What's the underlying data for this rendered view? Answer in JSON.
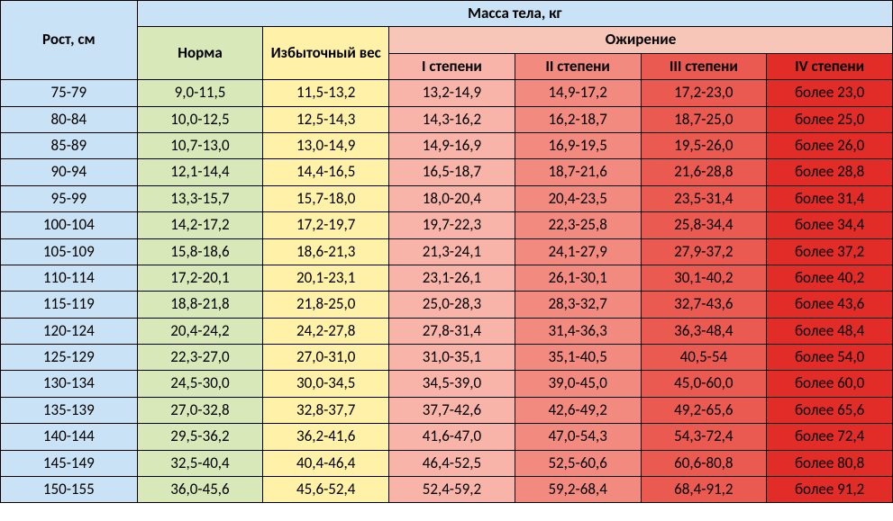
{
  "header": {
    "height_label": "Рост, см",
    "mass_label": "Масса тела, кг",
    "norma": "Норма",
    "excess": "Избыточный вес",
    "obesity": "Ожирение",
    "stage1": "I степени",
    "stage2": "II степени",
    "stage3": "III степени",
    "stage4": "IV степени"
  },
  "colors": {
    "header_blue": "#c9e2f5",
    "norma_green": "#d8e8b8",
    "excess_yellow": "#fff2a8",
    "obesity_header": "#f8c6b8",
    "stage1": "#f8b4a8",
    "stage2": "#f28a80",
    "stage3": "#ea5a50",
    "stage4": "#e22c28",
    "border": "#000000"
  },
  "table": {
    "type": "table",
    "col_widths_pct": [
      15.3,
      14.1,
      14.1,
      14.1,
      14.1,
      14.1,
      14.1
    ],
    "font_size_pt": 13,
    "rows": [
      {
        "h": "75-79",
        "n": "9,0-11,5",
        "e": "11,5-13,2",
        "s1": "13,2-14,9",
        "s2": "14,9-17,2",
        "s3": "17,2-23,0",
        "s4": "более 23,0"
      },
      {
        "h": "80-84",
        "n": "10,0-12,5",
        "e": "12,5-14,3",
        "s1": "14,3-16,2",
        "s2": "16,2-18,7",
        "s3": "18,7-25,0",
        "s4": "более 25,0"
      },
      {
        "h": "85-89",
        "n": "10,7-13,0",
        "e": "13,0-14,9",
        "s1": "14,9-16,9",
        "s2": "16,9-19,5",
        "s3": "19,5-26,0",
        "s4": "более 26,0"
      },
      {
        "h": "90-94",
        "n": "12,1-14,4",
        "e": "14,4-16,5",
        "s1": "16,5-18,7",
        "s2": "18,7-21,6",
        "s3": "21,6-28,8",
        "s4": "более 28,8"
      },
      {
        "h": "95-99",
        "n": "13,3-15,7",
        "e": "15,7-18,0",
        "s1": "18,0-20,4",
        "s2": "20,4-23,5",
        "s3": "23,5-31,4",
        "s4": "более 31,4"
      },
      {
        "h": "100-104",
        "n": "14,2-17,2",
        "e": "17,2-19,7",
        "s1": "19,7-22,3",
        "s2": "22,3-25,8",
        "s3": "25,8-34,4",
        "s4": "более 34,4"
      },
      {
        "h": "105-109",
        "n": "15,8-18,6",
        "e": "18,6-21,3",
        "s1": "21,3-24,1",
        "s2": "24,1-27,9",
        "s3": "27,9-37,2",
        "s4": "более 37,2"
      },
      {
        "h": "110-114",
        "n": "17,2-20,1",
        "e": "20,1-23,1",
        "s1": "23,1-26,1",
        "s2": "26,1-30,1",
        "s3": "30,1-40,2",
        "s4": "более 40,2"
      },
      {
        "h": "115-119",
        "n": "18,8-21,8",
        "e": "21,8-25,0",
        "s1": "25,0-28,3",
        "s2": "28,3-32,7",
        "s3": "32,7-43,6",
        "s4": "более 43,6"
      },
      {
        "h": "120-124",
        "n": "20,4-24,2",
        "e": "24,2-27,8",
        "s1": "27,8-31,4",
        "s2": "31,4-36,3",
        "s3": "36,3-48,4",
        "s4": "более 48,4"
      },
      {
        "h": "125-129",
        "n": "22,3-27,0",
        "e": "27,0-31,0",
        "s1": "31,0-35,1",
        "s2": "35,1-40,5",
        "s3": "40,5-54",
        "s4": "более 54,0"
      },
      {
        "h": "130-134",
        "n": "24,5-30,0",
        "e": "30,0-34,5",
        "s1": "34,5-39,0",
        "s2": "39,0-45,0",
        "s3": "45,0-60,0",
        "s4": "более 60,0"
      },
      {
        "h": "135-139",
        "n": "27,0-32,8",
        "e": "32,8-37,7",
        "s1": "37,7-42,6",
        "s2": "42,6-49,2",
        "s3": "49,2-65,6",
        "s4": "более 65,6"
      },
      {
        "h": "140-144",
        "n": "29,5-36,2",
        "e": "36,2-41,6",
        "s1": "41,6-47,0",
        "s2": "47,0-54,3",
        "s3": "54,3-72,4",
        "s4": "более 72,4"
      },
      {
        "h": "145-149",
        "n": "32,5-40,4",
        "e": "40,4-46,4",
        "s1": "46,4-52,5",
        "s2": "52,5-60,6",
        "s3": "60,6-80,8",
        "s4": "более 80,8"
      },
      {
        "h": "150-155",
        "n": "36,0-45,6",
        "e": "45,6-52,4",
        "s1": "52,4-59,2",
        "s2": "59,2-68,4",
        "s3": "68,4-91,2",
        "s4": "более 91,2"
      }
    ]
  }
}
